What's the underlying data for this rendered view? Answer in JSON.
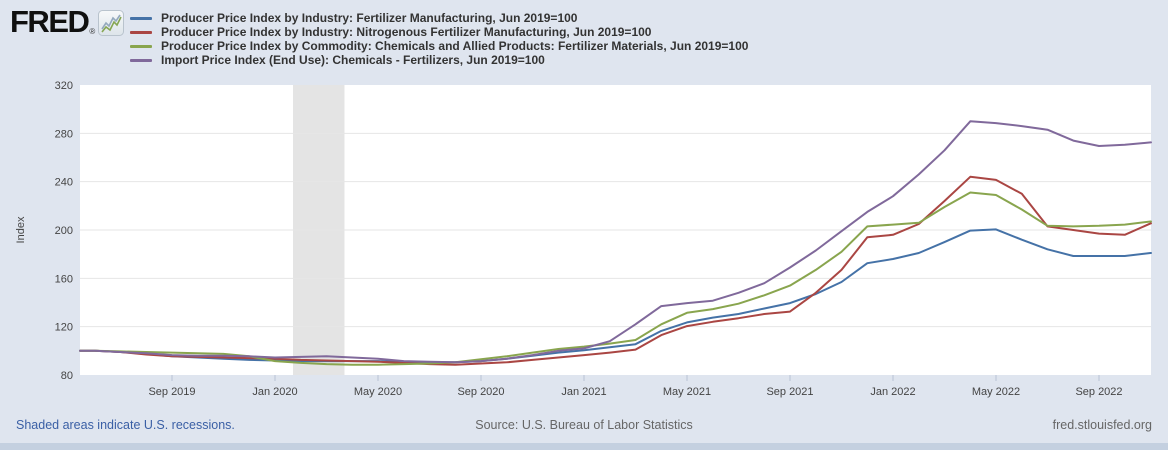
{
  "header": {
    "logo_text": "FRED",
    "logo_reg": "®"
  },
  "theme": {
    "background": "#dfe5ef",
    "plot_background": "#ffffff",
    "gridline": "#e6e6e6",
    "recession_band": "#e4e4e4",
    "tick_mark": "#b9c4d6",
    "axis_text": "#444444",
    "link_color": "#3a5fa5",
    "muted_text": "#666666",
    "bottom_bar": "#c4d0e0"
  },
  "chart_data": {
    "type": "line",
    "title": "",
    "xlabel": "",
    "ylabel": "Index",
    "ylim": [
      80,
      320
    ],
    "yticks": [
      80,
      120,
      160,
      200,
      240,
      280,
      320
    ],
    "grid": "horizontal",
    "legend_position": "top-left",
    "x": [
      "2019-06",
      "2019-07",
      "2019-08",
      "2019-09",
      "2019-10",
      "2019-11",
      "2019-12",
      "2020-01",
      "2020-02",
      "2020-03",
      "2020-04",
      "2020-05",
      "2020-06",
      "2020-07",
      "2020-08",
      "2020-09",
      "2020-10",
      "2020-11",
      "2020-12",
      "2021-01",
      "2021-02",
      "2021-03",
      "2021-04",
      "2021-05",
      "2021-06",
      "2021-07",
      "2021-08",
      "2021-09",
      "2021-10",
      "2021-11",
      "2021-12",
      "2022-01",
      "2022-02",
      "2022-03",
      "2022-04",
      "2022-05",
      "2022-06",
      "2022-07",
      "2022-08",
      "2022-09",
      "2022-10",
      "2022-11"
    ],
    "xticks": [
      {
        "month": "2019-09",
        "label": "Sep 2019"
      },
      {
        "month": "2020-01",
        "label": "Jan 2020"
      },
      {
        "month": "2020-05",
        "label": "May 2020"
      },
      {
        "month": "2020-09",
        "label": "Sep 2020"
      },
      {
        "month": "2021-01",
        "label": "Jan 2021"
      },
      {
        "month": "2021-05",
        "label": "May 2021"
      },
      {
        "month": "2021-09",
        "label": "Sep 2021"
      },
      {
        "month": "2022-01",
        "label": "Jan 2022"
      },
      {
        "month": "2022-05",
        "label": "May 2022"
      },
      {
        "month": "2022-09",
        "label": "Sep 2022"
      }
    ],
    "recession_band": {
      "start": "2020-02",
      "end": "2020-04"
    },
    "series": [
      {
        "name": "Producer Price Index by Industry: Fertilizer Manufacturing, Jun 2019=100",
        "color": "#4572a7",
        "values": [
          100,
          99,
          97.5,
          95.5,
          94.5,
          93.5,
          92.5,
          92,
          91.5,
          91.5,
          91.5,
          91.5,
          91,
          90.5,
          90.5,
          91.5,
          93.5,
          96,
          98.5,
          100.5,
          103,
          105.5,
          116.5,
          123.5,
          127.5,
          130.5,
          135,
          139.5,
          147,
          157,
          172.5,
          176,
          181,
          190,
          199.5,
          200.5,
          192,
          184,
          178.5,
          178.5,
          178.5,
          181
        ]
      },
      {
        "name": "Producer Price Index by Industry: Nitrogenous Fertilizer Manufacturing, Jun 2019=100",
        "color": "#aa4643",
        "values": [
          100,
          99,
          97,
          95.5,
          95,
          94.5,
          94,
          93.5,
          92.5,
          92,
          91.5,
          91,
          90,
          89,
          88.5,
          89.5,
          90.5,
          92.5,
          94.5,
          96.5,
          98.5,
          101,
          113,
          120.5,
          124,
          127,
          130.5,
          132.5,
          148,
          167,
          194,
          196,
          205,
          224,
          244,
          241.5,
          230,
          203,
          200,
          197,
          196,
          205.5
        ]
      },
      {
        "name": "Producer Price Index by Commodity: Chemicals and Allied Products: Fertilizer Materials, Jun 2019=100",
        "color": "#89a54e",
        "values": [
          100,
          99.5,
          99,
          98.5,
          98,
          97.5,
          95.5,
          91.5,
          90,
          89,
          88.5,
          88.5,
          89,
          89.5,
          90.5,
          93,
          95.5,
          98.5,
          101.5,
          103.5,
          106,
          109,
          122,
          131.5,
          134.5,
          139,
          146,
          154,
          167,
          182,
          203,
          204.5,
          206,
          219,
          231,
          229,
          217,
          203.5,
          203,
          203.5,
          204.5,
          207
        ]
      },
      {
        "name": "Import Price Index (End Use): Chemicals - Fertilizers, Jun 2019=100",
        "color": "#80699b",
        "values": [
          100,
          99,
          98,
          96.5,
          96,
          96,
          95.5,
          94.5,
          95,
          95.5,
          94.5,
          93.5,
          91.5,
          91,
          90.5,
          91.5,
          93.5,
          96.5,
          100,
          102,
          108,
          122,
          137,
          139.5,
          141.5,
          148,
          156,
          169,
          183,
          199,
          215,
          228,
          246,
          266,
          290,
          288.5,
          286,
          283,
          274,
          269.5,
          270.5,
          272.5
        ]
      }
    ]
  },
  "footer": {
    "recessions_note": "Shaded areas indicate U.S. recessions.",
    "source": "Source: U.S. Bureau of Labor Statistics",
    "site": "fred.stlouisfed.org"
  }
}
